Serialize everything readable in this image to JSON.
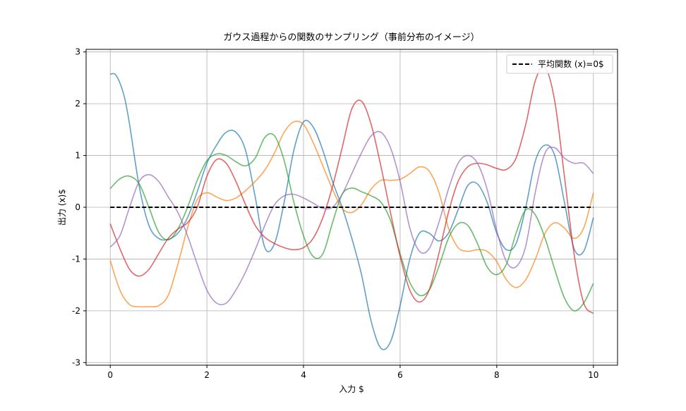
{
  "chart_data": {
    "type": "line",
    "title": "ガウス過程からの関数のサンプリング（事前分布のイメージ）",
    "xlabel": "入力 $",
    "ylabel": "出力 (x)$",
    "xlim": [
      -0.5,
      10.5
    ],
    "ylim": [
      -3.05,
      3.05
    ],
    "xticks": [
      0,
      2,
      4,
      6,
      8,
      10
    ],
    "xtick_labels": [
      "0",
      "2",
      "4",
      "6",
      "8",
      "10"
    ],
    "yticks": [
      -3,
      -2,
      -1,
      0,
      1,
      2,
      3
    ],
    "ytick_labels": [
      "-3",
      "-2",
      "-1",
      "0",
      "1",
      "2",
      "3"
    ],
    "grid": true,
    "legend_position": "top-right",
    "legend": [
      {
        "label": "平均関数 (x)=0$",
        "color": "#000000",
        "dash": true
      }
    ],
    "mean": {
      "x": [
        0,
        10
      ],
      "y": [
        0,
        0
      ],
      "color": "#000000"
    },
    "samples": [
      {
        "color": "#1f77b4",
        "x": [
          0,
          0.1,
          0.2,
          0.3,
          0.4,
          0.6,
          0.8,
          1.0,
          1.2,
          1.4,
          1.6,
          1.8,
          2.0,
          2.2,
          2.4,
          2.6,
          2.8,
          3.0,
          3.2,
          3.4,
          3.6,
          3.8,
          4.0,
          4.2,
          4.4,
          4.6,
          4.8,
          5.0,
          5.2,
          5.4,
          5.6,
          5.8,
          6.0,
          6.2,
          6.4,
          6.6,
          6.8,
          7.0,
          7.2,
          7.4,
          7.6,
          7.8,
          8.0,
          8.2,
          8.4,
          8.6,
          8.8,
          9.0,
          9.2,
          9.4,
          9.6,
          9.8,
          10.0
        ],
        "y": [
          2.57,
          2.57,
          2.4,
          2.1,
          1.6,
          0.4,
          -0.35,
          -0.6,
          -0.62,
          -0.5,
          -0.2,
          0.3,
          0.85,
          1.2,
          1.45,
          1.45,
          1.1,
          0.2,
          -0.78,
          -0.7,
          0.1,
          1.1,
          1.65,
          1.55,
          1.1,
          0.5,
          0.0,
          -0.6,
          -1.3,
          -2.2,
          -2.72,
          -2.6,
          -1.9,
          -1.0,
          -0.5,
          -0.5,
          -0.65,
          -0.5,
          -0.05,
          0.42,
          0.45,
          0.1,
          -0.5,
          -0.82,
          -0.7,
          0.0,
          0.9,
          1.2,
          1.0,
          0.1,
          -0.8,
          -0.85,
          -0.2
        ]
      },
      {
        "color": "#ff7f0e",
        "x": [
          0,
          0.2,
          0.4,
          0.6,
          0.8,
          1.0,
          1.2,
          1.4,
          1.6,
          1.8,
          2.0,
          2.2,
          2.4,
          2.6,
          2.8,
          3.0,
          3.2,
          3.4,
          3.6,
          3.8,
          4.0,
          4.2,
          4.4,
          4.6,
          4.8,
          5.0,
          5.2,
          5.4,
          5.6,
          5.8,
          6.0,
          6.2,
          6.4,
          6.6,
          6.8,
          7.0,
          7.2,
          7.4,
          7.6,
          7.8,
          8.0,
          8.2,
          8.4,
          8.6,
          8.8,
          9.0,
          9.2,
          9.4,
          9.6,
          9.8,
          10.0
        ],
        "y": [
          -1.03,
          -1.6,
          -1.88,
          -1.92,
          -1.92,
          -1.9,
          -1.7,
          -1.1,
          -0.4,
          0.15,
          0.28,
          0.2,
          0.13,
          0.18,
          0.32,
          0.5,
          0.72,
          1.05,
          1.45,
          1.65,
          1.6,
          1.25,
          0.8,
          0.35,
          -0.02,
          -0.1,
          0.05,
          0.35,
          0.52,
          0.52,
          0.54,
          0.65,
          0.78,
          0.7,
          0.3,
          -0.4,
          -0.78,
          -0.85,
          -0.82,
          -0.85,
          -1.05,
          -1.4,
          -1.55,
          -1.4,
          -1.0,
          -0.5,
          -0.3,
          -0.4,
          -0.6,
          -0.4,
          0.28
        ]
      },
      {
        "color": "#2ca02c",
        "x": [
          0,
          0.2,
          0.4,
          0.6,
          0.8,
          1.0,
          1.2,
          1.4,
          1.6,
          1.8,
          2.0,
          2.2,
          2.4,
          2.6,
          2.8,
          3.0,
          3.2,
          3.4,
          3.6,
          3.8,
          4.0,
          4.2,
          4.4,
          4.6,
          4.8,
          5.0,
          5.2,
          5.4,
          5.6,
          5.8,
          6.0,
          6.2,
          6.4,
          6.6,
          6.8,
          7.0,
          7.2,
          7.4,
          7.6,
          7.8,
          8.0,
          8.2,
          8.4,
          8.6,
          8.8,
          9.0,
          9.2,
          9.4,
          9.6,
          9.8,
          10.0
        ],
        "y": [
          0.36,
          0.55,
          0.6,
          0.45,
          0.0,
          -0.48,
          -0.63,
          -0.42,
          0.0,
          0.52,
          0.9,
          1.03,
          1.0,
          0.88,
          0.8,
          0.95,
          1.35,
          1.38,
          0.9,
          0.1,
          -0.55,
          -0.95,
          -0.9,
          -0.3,
          0.25,
          0.37,
          0.3,
          0.22,
          0.1,
          -0.25,
          -0.9,
          -1.45,
          -1.7,
          -1.6,
          -1.15,
          -0.6,
          -0.32,
          -0.35,
          -0.7,
          -1.15,
          -1.3,
          -1.1,
          -0.5,
          -0.05,
          -0.15,
          -0.6,
          -1.2,
          -1.75,
          -2.0,
          -1.85,
          -1.47
        ]
      },
      {
        "color": "#d62728",
        "x": [
          0,
          0.2,
          0.4,
          0.6,
          0.8,
          1.0,
          1.2,
          1.4,
          1.6,
          1.8,
          2.0,
          2.2,
          2.4,
          2.6,
          2.8,
          3.0,
          3.2,
          3.4,
          3.6,
          3.8,
          4.0,
          4.2,
          4.4,
          4.6,
          4.8,
          5.0,
          5.2,
          5.4,
          5.6,
          5.8,
          6.0,
          6.2,
          6.4,
          6.6,
          6.8,
          7.0,
          7.2,
          7.4,
          7.6,
          7.8,
          8.0,
          8.2,
          8.4,
          8.6,
          8.8,
          9.0,
          9.2,
          9.4,
          9.6,
          9.8,
          10.0
        ],
        "y": [
          -0.32,
          -0.8,
          -1.2,
          -1.33,
          -1.2,
          -0.9,
          -0.6,
          -0.42,
          -0.3,
          0.0,
          0.6,
          0.92,
          0.85,
          0.5,
          0.05,
          -0.35,
          -0.58,
          -0.7,
          -0.78,
          -0.82,
          -0.78,
          -0.6,
          -0.2,
          0.4,
          1.15,
          1.9,
          2.05,
          1.6,
          0.8,
          -0.1,
          -0.95,
          -1.6,
          -1.83,
          -1.6,
          -0.9,
          -0.1,
          0.5,
          0.78,
          0.85,
          0.82,
          0.75,
          0.73,
          0.95,
          1.6,
          2.45,
          2.7,
          2.05,
          0.6,
          -0.9,
          -1.85,
          -2.05
        ]
      },
      {
        "color": "#9467bd",
        "x": [
          0,
          0.2,
          0.4,
          0.6,
          0.8,
          1.0,
          1.2,
          1.4,
          1.6,
          1.8,
          2.0,
          2.2,
          2.4,
          2.6,
          2.8,
          3.0,
          3.2,
          3.4,
          3.6,
          3.8,
          4.0,
          4.2,
          4.4,
          4.6,
          4.8,
          5.0,
          5.2,
          5.4,
          5.6,
          5.8,
          6.0,
          6.2,
          6.4,
          6.6,
          6.8,
          7.0,
          7.2,
          7.4,
          7.6,
          7.8,
          8.0,
          8.2,
          8.4,
          8.6,
          8.8,
          9.0,
          9.2,
          9.4,
          9.6,
          9.8,
          10.0
        ],
        "y": [
          -0.77,
          -0.55,
          0.0,
          0.5,
          0.63,
          0.5,
          0.2,
          -0.1,
          -0.55,
          -1.1,
          -1.6,
          -1.85,
          -1.85,
          -1.6,
          -1.25,
          -0.82,
          -0.35,
          0.05,
          0.22,
          0.25,
          0.18,
          0.08,
          -0.02,
          0.0,
          0.25,
          0.65,
          1.05,
          1.38,
          1.45,
          1.15,
          0.5,
          -0.4,
          -0.85,
          -0.8,
          -0.3,
          0.35,
          0.85,
          1.0,
          0.85,
          0.35,
          -0.45,
          -1.05,
          -1.15,
          -0.75,
          0.3,
          1.05,
          1.15,
          0.95,
          0.85,
          0.85,
          0.65
        ]
      }
    ]
  }
}
